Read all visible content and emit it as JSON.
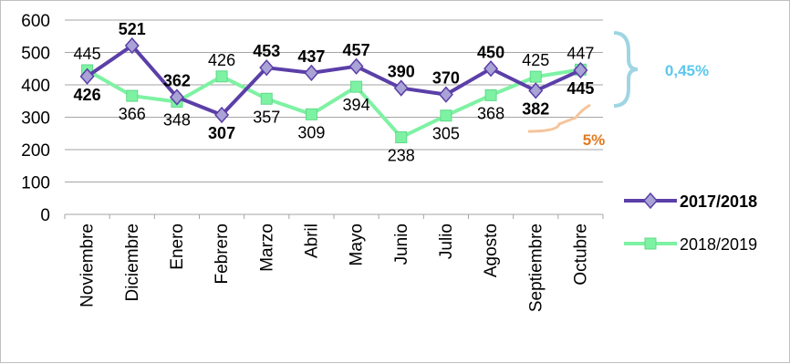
{
  "chart_data": {
    "type": "line",
    "categories": [
      "Noviembre",
      "Diciembre",
      "Enero",
      "Febrero",
      "Marzo",
      "Abril",
      "Mayo",
      "Junio",
      "Julio",
      "Agosto",
      "Septiembre",
      "Octubre"
    ],
    "series": [
      {
        "name": "2017/2018",
        "values": [
          426,
          521,
          362,
          307,
          453,
          437,
          457,
          390,
          370,
          450,
          382,
          445
        ],
        "color": "#5b3fa8",
        "marker": "diamond",
        "marker_color": "#a9a3d6",
        "labels_bold": true,
        "label_positions": [
          "below",
          "above",
          "above",
          "below",
          "above",
          "above",
          "above",
          "above",
          "above",
          "above",
          "below",
          "below"
        ]
      },
      {
        "name": "2018/2019",
        "values": [
          445,
          366,
          348,
          426,
          357,
          309,
          394,
          238,
          305,
          368,
          425,
          447
        ],
        "color": "#7ef2a3",
        "marker": "square",
        "marker_color": "#7ef2a3",
        "labels_bold": false,
        "label_positions": [
          "above",
          "below",
          "below",
          "above",
          "below",
          "below",
          "below",
          "below",
          "below",
          "below",
          "above",
          "above"
        ]
      }
    ],
    "ylim": [
      0,
      600
    ],
    "yticks": [
      0,
      100,
      200,
      300,
      400,
      500,
      600
    ],
    "grid": true,
    "legend_position": "right",
    "annotations": [
      {
        "text": "0,45%",
        "color": "#5bc8ee",
        "bracket": "blue-curly"
      },
      {
        "text": "5%",
        "color": "#e5781e",
        "bracket": "orange-curly"
      }
    ]
  }
}
